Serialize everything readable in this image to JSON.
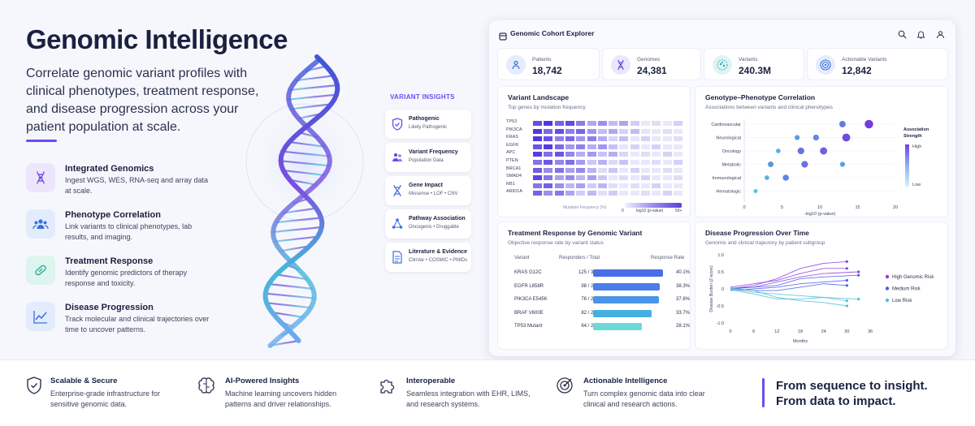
{
  "hero": {
    "title": "Genomic Intelligence",
    "subtitle": "Correlate genomic variant profiles with clinical phenotypes, treatment response, and disease progression across your patient population at scale."
  },
  "features": [
    {
      "title": "Integrated Genomics",
      "desc": "Ingest WGS, WES, RNA-seq and array data at scale.",
      "icon": "dna-icon"
    },
    {
      "title": "Phenotype Correlation",
      "desc": "Link variants to clinical phenotypes, lab results, and imaging.",
      "icon": "users-icon"
    },
    {
      "title": "Treatment Response",
      "desc": "Identify genomic predictors of therapy response and toxicity.",
      "icon": "pill-icon"
    },
    {
      "title": "Disease Progression",
      "desc": "Track molecular and clinical trajectories over time to uncover patterns.",
      "icon": "trend-icon"
    }
  ],
  "insights": {
    "heading": "VARIANT INSIGHTS",
    "items": [
      {
        "title": "Pathogenic",
        "sub": "Likely Pathogenic",
        "icon": "shield-icon"
      },
      {
        "title": "Variant Frequency",
        "sub": "Population Data",
        "icon": "people-icon"
      },
      {
        "title": "Gene Impact",
        "sub": "Missense • LOF • CNV",
        "icon": "dna-icon"
      },
      {
        "title": "Pathway Association",
        "sub": "Oncogenic • Druggable",
        "icon": "network-icon"
      },
      {
        "title": "Literature & Evidence",
        "sub": "ClinVar • COSMIC • PMIDs",
        "icon": "document-icon"
      }
    ]
  },
  "dashboard": {
    "title": "Genomic Cohort Explorer",
    "stats": [
      {
        "label": "Patients",
        "value": "18,742",
        "icon": "users-icon",
        "color": "#3b6fe0"
      },
      {
        "label": "Genomes",
        "value": "24,381",
        "icon": "dna-icon",
        "color": "#5b3fd6"
      },
      {
        "label": "Variants",
        "value": "240.3M",
        "icon": "cluster-icon",
        "color": "#21a8b0"
      },
      {
        "label": "Actionable Variants",
        "value": "12,842",
        "icon": "target-icon",
        "color": "#3b6fe0"
      }
    ],
    "landscape": {
      "title": "Variant Landscape",
      "subtitle": "Top genes by mutation frequency",
      "genes": [
        "TP53",
        "PIK3CA",
        "KRAS",
        "EGFR",
        "APC",
        "PTEN",
        "BRCA1",
        "SMAD4",
        "RB1",
        "ARID1A"
      ],
      "legend_label": "Mutation Frequency (%)",
      "legend_sub": "log10 (p-value)",
      "legend_min": "0",
      "legend_max": "50+"
    },
    "correlation": {
      "title": "Genotype–Phenotype Correlation",
      "subtitle": "Associations between variants and clinical phenotypes",
      "legend_title": "Association Strength",
      "legend_high": "High",
      "legend_low": "Low"
    },
    "treatment": {
      "title": "Treatment Response by Genomic Variant",
      "subtitle": "Objective response rate by variant status",
      "col_variant": "Variant",
      "col_resp": "Responders / Total",
      "col_rate": "Response Rate"
    },
    "progression": {
      "title": "Disease Progression Over Time",
      "subtitle": "Genomic and clinical trajectory by patient subgroup"
    }
  },
  "chart_data": [
    {
      "type": "scatter",
      "title": "Genotype–Phenotype Correlation",
      "xlabel": "-log10 (p-value)",
      "xlim": [
        0,
        20
      ],
      "x_ticks": [
        "0",
        "5",
        "10",
        "15",
        "20"
      ],
      "categories": [
        "Cardiovascular",
        "Neurological",
        "Oncology",
        "Metabolic",
        "Immunological",
        "Hematologic"
      ],
      "points": [
        {
          "cat": "Cardiovascular",
          "x": 13,
          "s": 0.55
        },
        {
          "cat": "Cardiovascular",
          "x": 16.5,
          "s": 0.95
        },
        {
          "cat": "Neurological",
          "x": 7,
          "s": 0.3
        },
        {
          "cat": "Neurological",
          "x": 9.5,
          "s": 0.45
        },
        {
          "cat": "Neurological",
          "x": 13.5,
          "s": 0.85
        },
        {
          "cat": "Oncology",
          "x": 4.5,
          "s": 0.2
        },
        {
          "cat": "Oncology",
          "x": 7.5,
          "s": 0.6
        },
        {
          "cat": "Oncology",
          "x": 10.5,
          "s": 0.7
        },
        {
          "cat": "Metabolic",
          "x": 3.5,
          "s": 0.4
        },
        {
          "cat": "Metabolic",
          "x": 8,
          "s": 0.6
        },
        {
          "cat": "Metabolic",
          "x": 13,
          "s": 0.3
        },
        {
          "cat": "Immunological",
          "x": 3,
          "s": 0.2
        },
        {
          "cat": "Immunological",
          "x": 5.5,
          "s": 0.5
        },
        {
          "cat": "Hematologic",
          "x": 1.5,
          "s": 0.1
        }
      ]
    },
    {
      "type": "bar",
      "title": "Treatment Response by Genomic Variant",
      "categories": [
        "KRAS G12C",
        "EGFR L858R",
        "PIK3CA E545K",
        "BRAF V600E",
        "TP53 Mutant"
      ],
      "responders": [
        "125 / 312",
        "98 / 256",
        "76 / 201",
        "82 / 243",
        "64 / 228"
      ],
      "values": [
        40.1,
        38.3,
        37.8,
        33.7,
        28.1
      ],
      "value_labels": [
        "40.1%",
        "38.3%",
        "37.8%",
        "33.7%",
        "28.1%"
      ],
      "colors": [
        "#4a6ee8",
        "#4a7ee8",
        "#4a95e6",
        "#45b0e0",
        "#6ed8d6"
      ]
    },
    {
      "type": "line",
      "title": "Disease Progression Over Time",
      "xlabel": "Months",
      "ylabel": "Disease Burden (Z-score)",
      "xlim": [
        0,
        36
      ],
      "ylim": [
        -1.0,
        1.0
      ],
      "x_ticks": [
        "0",
        "6",
        "12",
        "18",
        "24",
        "30",
        "36"
      ],
      "y_ticks": [
        "1.0",
        "0.5",
        "0",
        "-0.5",
        "-1.0"
      ],
      "series": [
        {
          "name": "High Genomic Risk",
          "color": "#8e3fe0",
          "lines": [
            [
              [
                0,
                0
              ],
              [
                6,
                0.1
              ],
              [
                12,
                0.3
              ],
              [
                18,
                0.6
              ],
              [
                24,
                0.75
              ],
              [
                30,
                0.8
              ]
            ],
            [
              [
                0,
                0.05
              ],
              [
                6,
                0.15
              ],
              [
                12,
                0.25
              ],
              [
                18,
                0.45
              ],
              [
                24,
                0.6
              ],
              [
                30,
                0.6
              ]
            ],
            [
              [
                0,
                0.02
              ],
              [
                6,
                0.05
              ],
              [
                12,
                0.2
              ],
              [
                18,
                0.35
              ],
              [
                24,
                0.45
              ],
              [
                33,
                0.5
              ]
            ]
          ]
        },
        {
          "name": "Medium Risk",
          "color": "#4a5ee6",
          "lines": [
            [
              [
                0,
                0
              ],
              [
                6,
                0.05
              ],
              [
                12,
                0.1
              ],
              [
                18,
                0.3
              ],
              [
                24,
                0.35
              ],
              [
                33,
                0.4
              ]
            ],
            [
              [
                0,
                -0.05
              ],
              [
                6,
                0.0
              ],
              [
                12,
                0.05
              ],
              [
                18,
                0.15
              ],
              [
                24,
                0.2
              ],
              [
                30,
                0.25
              ]
            ],
            [
              [
                0,
                0.02
              ],
              [
                6,
                -0.05
              ],
              [
                12,
                -0.05
              ],
              [
                18,
                0.05
              ],
              [
                24,
                0.15
              ],
              [
                30,
                0.1
              ]
            ]
          ]
        },
        {
          "name": "Low Risk",
          "color": "#4fc0d8",
          "lines": [
            [
              [
                0,
                0
              ],
              [
                6,
                -0.1
              ],
              [
                12,
                -0.15
              ],
              [
                18,
                -0.2
              ],
              [
                24,
                -0.25
              ],
              [
                33,
                -0.3
              ]
            ],
            [
              [
                0,
                0.02
              ],
              [
                6,
                -0.05
              ],
              [
                12,
                -0.25
              ],
              [
                18,
                -0.35
              ],
              [
                24,
                -0.4
              ],
              [
                30,
                -0.5
              ]
            ],
            [
              [
                0,
                -0.02
              ],
              [
                6,
                -0.15
              ],
              [
                12,
                -0.3
              ],
              [
                18,
                -0.3
              ],
              [
                24,
                -0.25
              ],
              [
                30,
                -0.35
              ]
            ]
          ]
        }
      ]
    }
  ],
  "bottom": {
    "items": [
      {
        "title": "Scalable & Secure",
        "desc": "Enterprise-grade infrastructure for sensitive genomic data.",
        "icon": "shield-icon"
      },
      {
        "title": "AI-Powered Insights",
        "desc": "Machine learning uncovers hidden patterns and driver relationships.",
        "icon": "brain-icon"
      },
      {
        "title": "Interoperable",
        "desc": "Seamless integration with EHR, LIMS, and research systems.",
        "icon": "puzzle-icon"
      },
      {
        "title": "Actionable Intelligence",
        "desc": "Turn complex genomic data into clear clinical and research actions.",
        "icon": "target-icon"
      }
    ],
    "tagline1": "From sequence to insight.",
    "tagline2": "From data to impact."
  }
}
